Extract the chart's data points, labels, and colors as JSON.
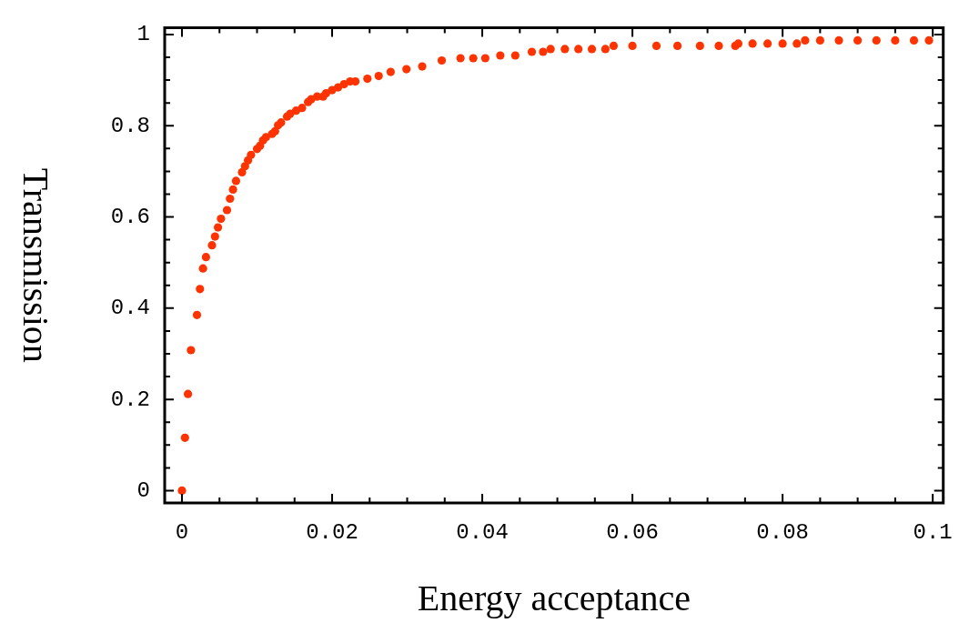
{
  "chart_data": {
    "type": "scatter",
    "xlabel": "Energy acceptance",
    "ylabel": "Transmission",
    "marker": "circle",
    "grid": false,
    "legend": false,
    "xlim": [
      -0.0023,
      0.1014
    ],
    "ylim": [
      -0.027,
      1.015
    ],
    "xticks": [
      0,
      {
        "value": 0.005,
        "label": null
      },
      {
        "value": 0.01,
        "label": null
      },
      {
        "value": 0.015,
        "label": null
      },
      0.02,
      {
        "value": 0.025,
        "label": null
      },
      {
        "value": 0.03,
        "label": null
      },
      {
        "value": 0.035,
        "label": null
      },
      0.04,
      {
        "value": 0.045,
        "label": null
      },
      {
        "value": 0.05,
        "label": null
      },
      {
        "value": 0.055,
        "label": null
      },
      0.06,
      {
        "value": 0.065,
        "label": null
      },
      {
        "value": 0.07,
        "label": null
      },
      {
        "value": 0.075,
        "label": null
      },
      0.08,
      {
        "value": 0.085,
        "label": null
      },
      {
        "value": 0.09,
        "label": null
      },
      {
        "value": 0.095,
        "label": null
      },
      0.1
    ],
    "yticks": [
      0,
      {
        "value": 0.05,
        "label": null
      },
      {
        "value": 0.1,
        "label": null
      },
      {
        "value": 0.15,
        "label": null
      },
      0.2,
      {
        "value": 0.25,
        "label": null
      },
      {
        "value": 0.3,
        "label": null
      },
      {
        "value": 0.35,
        "label": null
      },
      0.4,
      {
        "value": 0.45,
        "label": null
      },
      {
        "value": 0.5,
        "label": null
      },
      {
        "value": 0.55,
        "label": null
      },
      0.6,
      {
        "value": 0.65,
        "label": null
      },
      {
        "value": 0.7,
        "label": null
      },
      {
        "value": 0.75,
        "label": null
      },
      0.8,
      {
        "value": 0.85,
        "label": null
      },
      {
        "value": 0.9,
        "label": null
      },
      {
        "value": 0.95,
        "label": null
      },
      1
    ],
    "series": [
      {
        "color": "#ff3300",
        "x": [
          0,
          0.0004,
          0.0008,
          0.0012,
          0.002,
          0.0024,
          0.0028,
          0.0032,
          0.004,
          0.0044,
          0.0048,
          0.0052,
          0.006,
          0.0064,
          0.0068,
          0.0072,
          0.008,
          0.0084,
          0.0088,
          0.0092,
          0.01,
          0.0104,
          0.0108,
          0.0112,
          0.012,
          0.0124,
          0.0128,
          0.0132,
          0.014,
          0.0144,
          0.0152,
          0.016,
          0.0168,
          0.0172,
          0.018,
          0.0188,
          0.0192,
          0.02,
          0.0208,
          0.0216,
          0.0224,
          0.0231,
          0.0247,
          0.0262,
          0.0278,
          0.0299,
          0.032,
          0.0346,
          0.0371,
          0.0388,
          0.0404,
          0.0424,
          0.0444,
          0.0466,
          0.0481,
          0.0491,
          0.051,
          0.0528,
          0.0546,
          0.0564,
          0.0575,
          0.06,
          0.0632,
          0.066,
          0.069,
          0.0715,
          0.0737,
          0.0741,
          0.076,
          0.078,
          0.08,
          0.0819,
          0.083,
          0.085,
          0.0875,
          0.09,
          0.0925,
          0.095,
          0.0975,
          0.0995
        ],
        "values": [
          0,
          0.116,
          0.212,
          0.308,
          0.385,
          0.442,
          0.487,
          0.512,
          0.538,
          0.557,
          0.577,
          0.596,
          0.615,
          0.64,
          0.66,
          0.679,
          0.698,
          0.711,
          0.724,
          0.736,
          0.749,
          0.756,
          0.768,
          0.775,
          0.782,
          0.788,
          0.801,
          0.807,
          0.82,
          0.826,
          0.833,
          0.839,
          0.852,
          0.858,
          0.864,
          0.864,
          0.871,
          0.878,
          0.884,
          0.891,
          0.897,
          0.897,
          0.903,
          0.909,
          0.918,
          0.924,
          0.93,
          0.943,
          0.948,
          0.948,
          0.948,
          0.954,
          0.954,
          0.962,
          0.962,
          0.968,
          0.968,
          0.968,
          0.968,
          0.968,
          0.975,
          0.975,
          0.975,
          0.975,
          0.975,
          0.975,
          0.975,
          0.98,
          0.98,
          0.98,
          0.98,
          0.98,
          0.987,
          0.987,
          0.987,
          0.987,
          0.987,
          0.987,
          0.987,
          0.987
        ]
      }
    ]
  }
}
